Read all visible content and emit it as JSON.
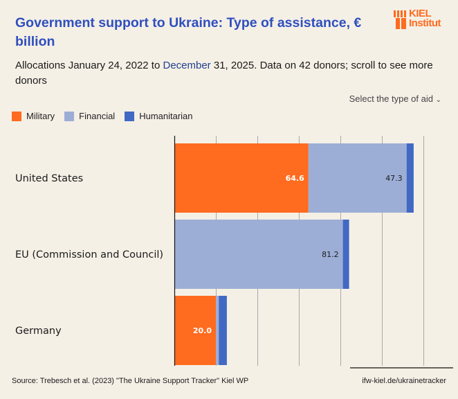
{
  "header": {
    "title": "Government support to Ukraine: Type of assistance, € billion",
    "subtitle_parts": {
      "a": "Allocations January 24, 2022 to ",
      "b": "December",
      "c": " 31, 2025",
      "d": ". Data on 42 donors; scroll to see more donors"
    },
    "logo": {
      "line1": "KIEL",
      "line2": "Institut",
      "color": "#ff6b1f"
    }
  },
  "controls": {
    "select_aid_label": "Select the type of aid",
    "select_icon": "chevron-down-icon"
  },
  "colors": {
    "military": "#ff6b1f",
    "financial": "#9daed6",
    "humanitarian": "#4169c4",
    "title": "#2f4fbf"
  },
  "chart_data": {
    "type": "bar",
    "orientation": "horizontal",
    "stacked": true,
    "title": "Government support to Ukraine: Type of assistance, € billion",
    "xlabel": "",
    "ylabel": "",
    "xlim": [
      0,
      120
    ],
    "grid": true,
    "legend": "top-left",
    "categories": [
      "United States",
      "EU (Commission and Council)",
      "Germany"
    ],
    "series": [
      {
        "name": "Military",
        "values": [
          64.6,
          0,
          20.0
        ],
        "labels": [
          "64.6",
          "",
          "20.0"
        ]
      },
      {
        "name": "Financial",
        "values": [
          47.3,
          81.2,
          1.4
        ],
        "labels": [
          "47.3",
          "81.2",
          ""
        ]
      },
      {
        "name": "Humanitarian",
        "values": [
          3.4,
          3.0,
          3.9
        ],
        "labels": [
          "",
          "",
          ""
        ]
      }
    ]
  },
  "footer": {
    "source": "Source: Trebesch et al. (2023) \"The Ukraine Support Tracker\" Kiel WP",
    "url": "ifw-kiel.de/ukrainetracker"
  }
}
